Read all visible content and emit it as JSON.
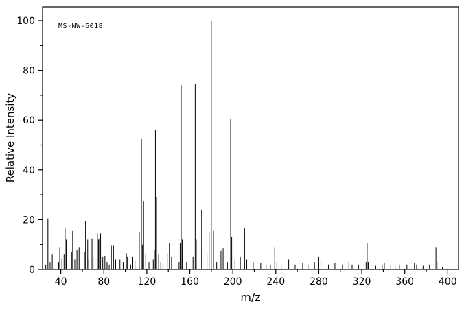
{
  "chart_data": {
    "type": "bar",
    "subtype": "mass-spectrum",
    "annotation": "MS-NW-6018",
    "title": "",
    "xlabel": "m/z",
    "ylabel": "Relative Intensity",
    "xlim": [
      23,
      410
    ],
    "ylim": [
      0,
      100
    ],
    "x_major_ticks": [
      40,
      80,
      120,
      160,
      200,
      240,
      280,
      320,
      360,
      400
    ],
    "x_minor_step": 20,
    "y_major_ticks": [
      0,
      20,
      40,
      60,
      80,
      100
    ],
    "y_minor_step": 10,
    "grid": false,
    "legend": "none",
    "background_color": "#ffffff",
    "line_color": "#000000",
    "peaks": [
      [
        26,
        2
      ],
      [
        28,
        20.5
      ],
      [
        30,
        3
      ],
      [
        32,
        6
      ],
      [
        38,
        3
      ],
      [
        39,
        9
      ],
      [
        41,
        4.5
      ],
      [
        43,
        6
      ],
      [
        44,
        16.5
      ],
      [
        45,
        12
      ],
      [
        50,
        7
      ],
      [
        51,
        15.5
      ],
      [
        53,
        4
      ],
      [
        55,
        8
      ],
      [
        57,
        9
      ],
      [
        62,
        7
      ],
      [
        63,
        19.5
      ],
      [
        65,
        12
      ],
      [
        66,
        4
      ],
      [
        69,
        12.5
      ],
      [
        70,
        5
      ],
      [
        74,
        14.5
      ],
      [
        75,
        12
      ],
      [
        76,
        12.5
      ],
      [
        77,
        14.5
      ],
      [
        79,
        5
      ],
      [
        81,
        5.5
      ],
      [
        83,
        3
      ],
      [
        85,
        2
      ],
      [
        87,
        9.5
      ],
      [
        89,
        9.5
      ],
      [
        91,
        4
      ],
      [
        95,
        4
      ],
      [
        98,
        3
      ],
      [
        101,
        6.5
      ],
      [
        102,
        5
      ],
      [
        105,
        2
      ],
      [
        107,
        5
      ],
      [
        109,
        3.5
      ],
      [
        113,
        15
      ],
      [
        115,
        52.5
      ],
      [
        116,
        10
      ],
      [
        117,
        27.5
      ],
      [
        119,
        6.5
      ],
      [
        122,
        3
      ],
      [
        126,
        4
      ],
      [
        127,
        8
      ],
      [
        128,
        56
      ],
      [
        129,
        29
      ],
      [
        131,
        6
      ],
      [
        133,
        3
      ],
      [
        135,
        2
      ],
      [
        139,
        6.5
      ],
      [
        141,
        10.5
      ],
      [
        143,
        5
      ],
      [
        150,
        3
      ],
      [
        151,
        10.5
      ],
      [
        152,
        74
      ],
      [
        153,
        12
      ],
      [
        157,
        3
      ],
      [
        163,
        5
      ],
      [
        165,
        74.5
      ],
      [
        166,
        12
      ],
      [
        171,
        24
      ],
      [
        176,
        6
      ],
      [
        178,
        15
      ],
      [
        180,
        100
      ],
      [
        182,
        15.5
      ],
      [
        185,
        3
      ],
      [
        189,
        7.5
      ],
      [
        191,
        8.5
      ],
      [
        195,
        3
      ],
      [
        198,
        60.5
      ],
      [
        199,
        13
      ],
      [
        202,
        4
      ],
      [
        207,
        5
      ],
      [
        211,
        16.5
      ],
      [
        213,
        4
      ],
      [
        219,
        3
      ],
      [
        226,
        2.5
      ],
      [
        231,
        2
      ],
      [
        235,
        2
      ],
      [
        239,
        9
      ],
      [
        241,
        3
      ],
      [
        245,
        2
      ],
      [
        252,
        4
      ],
      [
        258,
        2
      ],
      [
        265,
        2.5
      ],
      [
        270,
        2
      ],
      [
        276,
        3
      ],
      [
        280,
        5
      ],
      [
        282,
        4.5
      ],
      [
        289,
        2
      ],
      [
        295,
        2.5
      ],
      [
        302,
        2
      ],
      [
        308,
        3
      ],
      [
        311,
        2
      ],
      [
        317,
        2
      ],
      [
        324,
        3
      ],
      [
        325,
        10.5
      ],
      [
        326,
        3
      ],
      [
        333,
        1.5
      ],
      [
        339,
        2
      ],
      [
        341,
        2.5
      ],
      [
        347,
        2
      ],
      [
        351,
        1.5
      ],
      [
        355,
        2
      ],
      [
        362,
        2
      ],
      [
        369,
        2.5
      ],
      [
        371,
        2
      ],
      [
        377,
        1.5
      ],
      [
        383,
        2
      ],
      [
        389,
        9
      ],
      [
        390,
        3
      ],
      [
        395,
        1
      ]
    ]
  }
}
